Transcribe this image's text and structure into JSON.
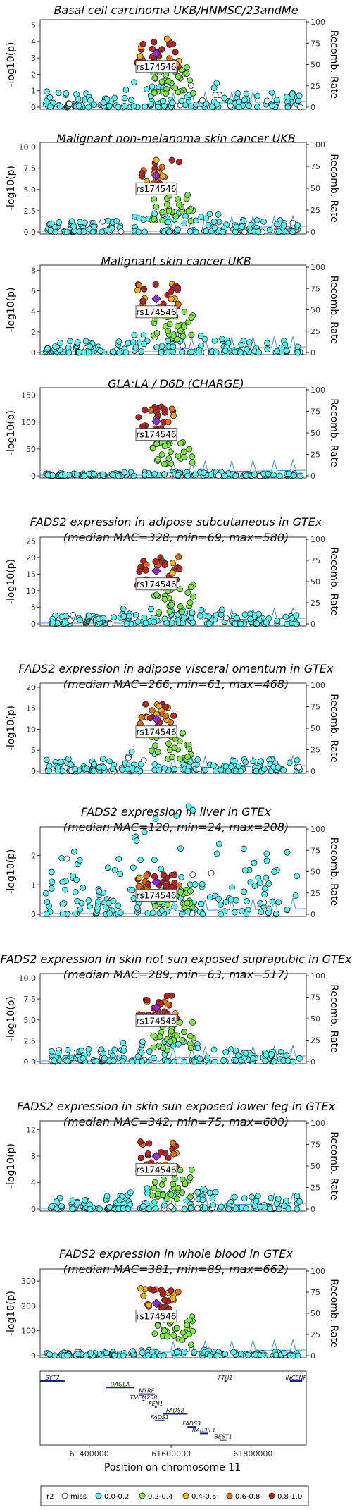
{
  "colors": {
    "miss": "#ffffff",
    "r0": "#5ef2f2",
    "r1": "#7ee84a",
    "r2": "#f2b31c",
    "r3": "#e07010",
    "r4": "#b8231f",
    "lead": "#8a2be2",
    "recomb": "#3b8fe0"
  },
  "chart_data": [
    {
      "type": "scatter",
      "title": "Basal cell carcinoma UKB/HNMSC/23andMe",
      "ylabel": "-log10(p)",
      "y2label": "Recomb. Rate",
      "ylim": [
        0,
        5.2
      ],
      "yticks": [
        "0",
        "1",
        "2",
        "3",
        "4",
        "5"
      ],
      "y2ticks": [
        "0",
        "25",
        "50",
        "75",
        "100"
      ],
      "lead_snp": "rs174546",
      "peak": 4.2,
      "background": 1.0
    },
    {
      "type": "scatter",
      "title": "Malignant non-melanoma skin cancer UKB",
      "ylabel": "-log10(p)",
      "y2label": "Recomb. Rate",
      "ylim": [
        0,
        10.3
      ],
      "yticks": [
        "0.0",
        "2.5",
        "5.0",
        "7.5",
        "10.0"
      ],
      "y2ticks": [
        "0",
        "25",
        "50",
        "75",
        "100"
      ],
      "lead_snp": "rs174546",
      "peak": 8.5,
      "background": 1.5
    },
    {
      "type": "scatter",
      "title": "Malignant skin cancer UKB",
      "ylabel": "-log10(p)",
      "y2label": "Recomb. Rate",
      "ylim": [
        0,
        8.3
      ],
      "yticks": [
        "0",
        "2",
        "4",
        "6",
        "8"
      ],
      "y2ticks": [
        "0",
        "25",
        "50",
        "75",
        "100"
      ],
      "lead_snp": "rs174546",
      "peak": 6.7,
      "background": 1.2
    },
    {
      "type": "scatter",
      "title": "GLA:LA / D6D (CHARGE)",
      "ylabel": "-log10(p)",
      "y2label": "Recomb. Rate",
      "ylim": [
        0,
        160
      ],
      "yticks": [
        "0",
        "50",
        "100",
        "150"
      ],
      "y2ticks": [
        "0",
        "25",
        "50",
        "75",
        "100"
      ],
      "lead_snp": "rs174546",
      "peak": 130,
      "background": 5
    },
    {
      "type": "scatter",
      "title": "FADS2 expression in adipose subcutaneous in GTEx",
      "subtitle": "(median MAC=328, min=69, max=580)",
      "ylabel": "-log10(p)",
      "y2label": "Recomb. Rate",
      "ylim": [
        0,
        25.5
      ],
      "yticks": [
        "0",
        "5",
        "10",
        "15",
        "20",
        "25"
      ],
      "y2ticks": [
        "0",
        "25",
        "50",
        "75",
        "100"
      ],
      "lead_snp": "rs174546",
      "peak": 20.5,
      "background": 3
    },
    {
      "type": "scatter",
      "title": "FADS2 expression in adipose visceral omentum in GTEx",
      "subtitle": "(median MAC=266, min=61, max=468)",
      "ylabel": "-log10(p)",
      "y2label": "Recomb. Rate",
      "ylim": [
        0,
        20.5
      ],
      "yticks": [
        "0",
        "5",
        "10",
        "15",
        "20"
      ],
      "y2ticks": [
        "0",
        "25",
        "50",
        "75",
        "100"
      ],
      "lead_snp": "rs174546",
      "peak": 16,
      "background": 3
    },
    {
      "type": "scatter",
      "title": "FADS2 expression in liver in GTEx",
      "subtitle": "(median MAC=120, min=24, max=208)",
      "ylabel": "-log10(p)",
      "y2label": "Recomb. Rate",
      "ylim": [
        0,
        2.9
      ],
      "yticks": [
        "0",
        "1",
        "2"
      ],
      "y2ticks": [
        "0",
        "25",
        "50",
        "75",
        "100"
      ],
      "lead_snp": "rs174546",
      "peak": 1.4,
      "background": 2.3
    },
    {
      "type": "scatter",
      "title": "FADS2 expression in skin not sun exposed suprapubic in GTEx",
      "subtitle": "(median MAC=289, min=63, max=517)",
      "ylabel": "-log10(p)",
      "y2label": "Recomb. Rate",
      "ylim": [
        0,
        10.3
      ],
      "yticks": [
        "0.0",
        "2.5",
        "5.0",
        "7.5",
        "10.0"
      ],
      "y2ticks": [
        "0",
        "25",
        "50",
        "75",
        "100"
      ],
      "lead_snp": "rs174546",
      "peak": 8.3,
      "background": 1.5
    },
    {
      "type": "scatter",
      "title": "FADS2 expression in skin sun exposed lower leg in GTEx",
      "subtitle": "(median MAC=342, min=75, max=600)",
      "ylabel": "-log10(p)",
      "y2label": "Recomb. Rate",
      "ylim": [
        0,
        13
      ],
      "yticks": [
        "0",
        "4",
        "8",
        "12"
      ],
      "y2ticks": [
        "0",
        "25",
        "50",
        "75",
        "100"
      ],
      "lead_snp": "rs174546",
      "peak": 10.2,
      "background": 2
    },
    {
      "type": "scatter",
      "title": "FADS2 expression in whole blood in GTEx",
      "subtitle": "(median MAC=381, min=89, max=662)",
      "ylabel": "-log10(p)",
      "y2label": "Recomb. Rate",
      "ylim": [
        0,
        340
      ],
      "yticks": [
        "0",
        "100",
        "200",
        "300"
      ],
      "y2ticks": [
        "0",
        "25",
        "50",
        "75",
        "100"
      ],
      "lead_snp": "rs174546",
      "peak": 270,
      "background": 15
    }
  ],
  "genes": [
    {
      "name": "SYT7",
      "start": 61280000,
      "end": 61340000,
      "row": 0
    },
    {
      "name": "FTH1",
      "start": 61730000,
      "end": 61735000,
      "row": 0
    },
    {
      "name": "INCENP",
      "start": 61890000,
      "end": 61920000,
      "row": 0
    },
    {
      "name": "DAGLA",
      "start": 61440000,
      "end": 61510000,
      "row": 1
    },
    {
      "name": "MYRF",
      "start": 61520000,
      "end": 61560000,
      "row": 2
    },
    {
      "name": "TMEM258",
      "start": 61530000,
      "end": 61535000,
      "row": 3
    },
    {
      "name": "FEN1",
      "start": 61560000,
      "end": 61565000,
      "row": 4
    },
    {
      "name": "FADS2",
      "start": 61580000,
      "end": 61640000,
      "row": 5
    },
    {
      "name": "FADS1",
      "start": 61560000,
      "end": 61585000,
      "row": 6
    },
    {
      "name": "FADS3",
      "start": 61640000,
      "end": 61660000,
      "row": 7
    },
    {
      "name": "RAB3IL1",
      "start": 61670000,
      "end": 61690000,
      "row": 8
    },
    {
      "name": "BEST1",
      "start": 61720000,
      "end": 61735000,
      "row": 9
    }
  ],
  "xaxis": {
    "label": "Position on chromosome 11",
    "range": [
      61280000,
      61930000
    ],
    "ticks": [
      "61400000",
      "61600000",
      "61800000"
    ],
    "tick_values": [
      61400000,
      61600000,
      61800000
    ]
  },
  "legend": {
    "title": "r2",
    "items": [
      "miss",
      "0.0-0.2",
      "0.2-0.4",
      "0.4-0.6",
      "0.6-0.8",
      "0.8-1.0"
    ],
    "colors": [
      "#ffffff",
      "#5ef2f2",
      "#7ee84a",
      "#f2b31c",
      "#e07010",
      "#b8231f"
    ]
  }
}
